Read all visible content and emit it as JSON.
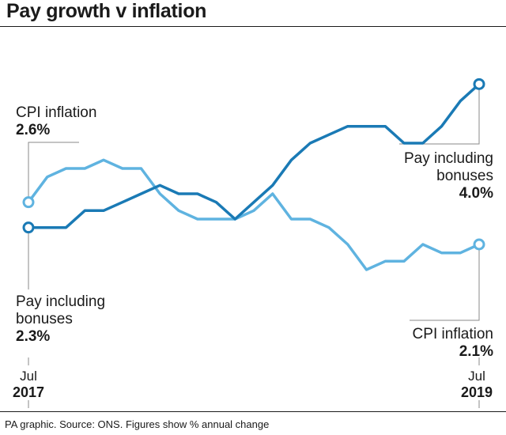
{
  "title": "Pay growth v inflation",
  "footer": "PA graphic. Source: ONS. Figures show % annual change",
  "chart_data": {
    "type": "line",
    "title": "Pay growth v inflation",
    "x_start": {
      "month": "Jul",
      "year": "2017"
    },
    "x_end": {
      "month": "Jul",
      "year": "2019"
    },
    "ylim": [
      1.5,
      4.5
    ],
    "series": [
      {
        "name": "Pay including bonuses",
        "color": "#1a7ab5",
        "values": [
          2.3,
          2.3,
          2.3,
          2.5,
          2.5,
          2.6,
          2.7,
          2.8,
          2.7,
          2.7,
          2.6,
          2.4,
          2.6,
          2.8,
          3.1,
          3.3,
          3.4,
          3.5,
          3.5,
          3.5,
          3.3,
          3.3,
          3.5,
          3.8,
          4.0
        ],
        "start_label": {
          "name_lines": [
            "Pay including",
            "bonuses"
          ],
          "value": "2.3%"
        },
        "end_label": {
          "name_lines": [
            "Pay including",
            "bonuses"
          ],
          "value": "4.0%"
        }
      },
      {
        "name": "CPI inflation",
        "color": "#5fb3e0",
        "values": [
          2.6,
          2.9,
          3.0,
          3.0,
          3.1,
          3.0,
          3.0,
          2.7,
          2.5,
          2.4,
          2.4,
          2.4,
          2.5,
          2.7,
          2.4,
          2.4,
          2.3,
          2.1,
          1.8,
          1.9,
          1.9,
          2.1,
          2.0,
          2.0,
          2.1
        ],
        "start_label": {
          "name_lines": [
            "CPI inflation"
          ],
          "value": "2.6%"
        },
        "end_label": {
          "name_lines": [
            "CPI inflation"
          ],
          "value": "2.1%"
        }
      }
    ]
  }
}
